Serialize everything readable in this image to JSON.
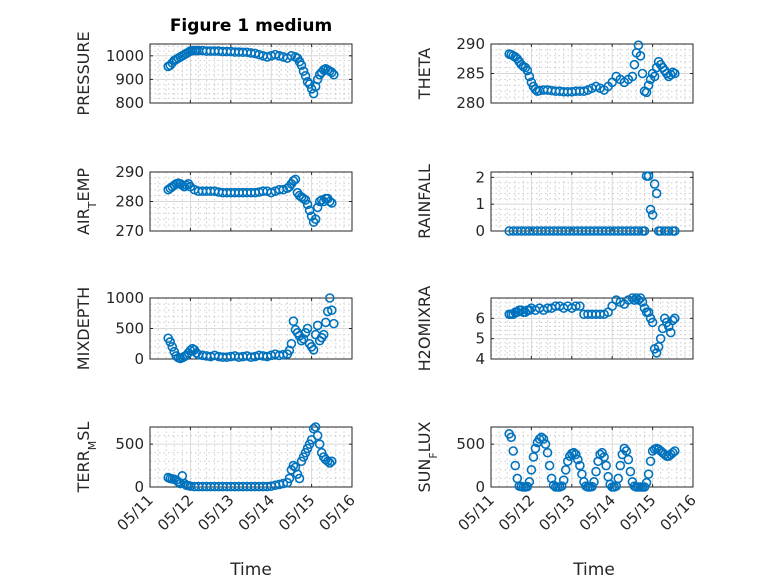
{
  "figure": {
    "title": "Figure 1 medium",
    "xlabel": "Time",
    "marker_color": "#0072bd"
  },
  "chart_data": [
    {
      "type": "scatter",
      "ylabel": "PRESSURE",
      "ylim": [
        800,
        1050
      ],
      "yticks": [
        800,
        900,
        1000
      ],
      "x": [
        11.45,
        11.5,
        11.55,
        11.6,
        11.65,
        11.7,
        11.75,
        11.8,
        11.85,
        11.9,
        11.95,
        12.0,
        12.05,
        12.1,
        12.15,
        12.2,
        12.3,
        12.4,
        12.5,
        12.6,
        12.7,
        12.8,
        12.9,
        13.0,
        13.1,
        13.2,
        13.3,
        13.4,
        13.5,
        13.6,
        13.7,
        13.8,
        13.9,
        14.0,
        14.1,
        14.2,
        14.3,
        14.4,
        14.5,
        14.6,
        14.65,
        14.7,
        14.75,
        14.8,
        14.85,
        14.9,
        14.95,
        15.0,
        15.05,
        15.1,
        15.15,
        15.2,
        15.25,
        15.3,
        15.35,
        15.4,
        15.45,
        15.5,
        15.55
      ],
      "y": [
        955,
        960,
        970,
        980,
        985,
        990,
        995,
        1000,
        1005,
        1010,
        1015,
        1020,
        1022,
        1022,
        1022,
        1022,
        1022,
        1020,
        1020,
        1020,
        1020,
        1018,
        1018,
        1018,
        1016,
        1016,
        1015,
        1015,
        1012,
        1010,
        1005,
        1000,
        995,
        1000,
        1005,
        1000,
        995,
        990,
        1000,
        995,
        990,
        975,
        960,
        935,
        915,
        890,
        880,
        860,
        840,
        870,
        900,
        920,
        930,
        940,
        945,
        940,
        935,
        930,
        920
      ]
    },
    {
      "type": "scatter",
      "ylabel": "THETA",
      "ylim": [
        280,
        290
      ],
      "yticks": [
        280,
        285,
        290
      ],
      "x": [
        11.45,
        11.5,
        11.55,
        11.6,
        11.65,
        11.7,
        11.75,
        11.8,
        11.85,
        11.9,
        11.95,
        12.0,
        12.05,
        12.1,
        12.15,
        12.2,
        12.3,
        12.4,
        12.5,
        12.6,
        12.7,
        12.8,
        12.9,
        13.0,
        13.1,
        13.2,
        13.3,
        13.4,
        13.5,
        13.6,
        13.7,
        13.8,
        13.9,
        14.0,
        14.1,
        14.2,
        14.3,
        14.4,
        14.5,
        14.55,
        14.6,
        14.65,
        14.7,
        14.75,
        14.8,
        14.85,
        14.9,
        14.95,
        15.0,
        15.05,
        15.1,
        15.15,
        15.2,
        15.25,
        15.3,
        15.35,
        15.4,
        15.45,
        15.5,
        15.55
      ],
      "y": [
        288.3,
        288.2,
        288.0,
        287.8,
        287.5,
        287.0,
        286.5,
        286.2,
        286.0,
        285.5,
        284.5,
        283.5,
        282.8,
        282.3,
        282.0,
        282.1,
        282.2,
        282.2,
        282.1,
        282.0,
        282.0,
        281.9,
        281.9,
        281.9,
        282.0,
        282.0,
        282.0,
        282.2,
        282.5,
        282.8,
        282.5,
        282.2,
        282.8,
        283.5,
        284.5,
        284.0,
        283.5,
        284.0,
        284.5,
        286.5,
        288.5,
        289.8,
        288.0,
        285.0,
        282.0,
        281.8,
        283.0,
        284.0,
        285.0,
        284.5,
        286.0,
        287.0,
        286.5,
        286.0,
        285.5,
        285.0,
        284.5,
        284.8,
        285.2,
        285.0
      ]
    },
    {
      "type": "scatter",
      "ylabel": "AIR_TEMP",
      "ylim": [
        270,
        290
      ],
      "yticks": [
        270,
        280,
        290
      ],
      "x": [
        11.45,
        11.5,
        11.55,
        11.6,
        11.65,
        11.7,
        11.75,
        11.8,
        11.85,
        11.9,
        11.95,
        12.0,
        12.1,
        12.2,
        12.3,
        12.4,
        12.5,
        12.6,
        12.7,
        12.8,
        12.9,
        13.0,
        13.1,
        13.2,
        13.3,
        13.4,
        13.5,
        13.6,
        13.7,
        13.8,
        13.9,
        14.0,
        14.1,
        14.2,
        14.3,
        14.4,
        14.45,
        14.5,
        14.55,
        14.6,
        14.65,
        14.7,
        14.75,
        14.8,
        14.85,
        14.9,
        14.95,
        15.0,
        15.05,
        15.1,
        15.15,
        15.2,
        15.25,
        15.3,
        15.35,
        15.4,
        15.45,
        15.5
      ],
      "y": [
        284.0,
        284.5,
        285.0,
        285.5,
        286.0,
        286.2,
        286.0,
        285.5,
        285.0,
        285.5,
        286.0,
        285.0,
        284.0,
        283.5,
        283.5,
        283.5,
        283.5,
        283.5,
        283.2,
        283.0,
        283.0,
        283.0,
        283.0,
        283.0,
        283.0,
        283.0,
        283.0,
        283.0,
        283.2,
        283.5,
        283.5,
        283.0,
        283.5,
        284.0,
        284.0,
        284.5,
        285.0,
        286.0,
        287.0,
        287.5,
        283.0,
        282.0,
        281.5,
        281.0,
        280.5,
        279.0,
        277.0,
        275.0,
        273.0,
        274.0,
        278.0,
        280.0,
        280.5,
        280.0,
        281.0,
        281.0,
        280.0,
        279.5
      ]
    },
    {
      "type": "scatter",
      "ylabel": "RAINFALL",
      "ylim": [
        0,
        2.2
      ],
      "yticks": [
        0,
        1,
        2
      ],
      "x": [
        11.45,
        11.55,
        11.65,
        11.75,
        11.85,
        11.95,
        12.05,
        12.15,
        12.25,
        12.35,
        12.45,
        12.55,
        12.65,
        12.75,
        12.85,
        12.95,
        13.05,
        13.15,
        13.25,
        13.35,
        13.45,
        13.55,
        13.65,
        13.75,
        13.85,
        13.95,
        14.05,
        14.15,
        14.25,
        14.35,
        14.45,
        14.55,
        14.65,
        14.75,
        14.8,
        14.85,
        14.9,
        14.95,
        15.0,
        15.05,
        15.1,
        15.15,
        15.2,
        15.3,
        15.4,
        15.5,
        15.55
      ],
      "y": [
        0,
        0,
        0,
        0,
        0,
        0,
        0,
        0,
        0,
        0,
        0,
        0,
        0,
        0,
        0,
        0,
        0,
        0,
        0,
        0,
        0,
        0,
        0,
        0,
        0,
        0,
        0,
        0,
        0,
        0,
        0,
        0,
        0,
        0,
        0,
        2.05,
        2.05,
        0.8,
        0.6,
        1.75,
        1.4,
        0,
        0,
        0,
        0,
        0,
        0
      ]
    },
    {
      "type": "scatter",
      "ylabel": "MIXDEPTH",
      "ylim": [
        0,
        1000
      ],
      "yticks": [
        0,
        500,
        1000
      ],
      "x": [
        11.45,
        11.5,
        11.55,
        11.6,
        11.65,
        11.7,
        11.75,
        11.8,
        11.85,
        11.9,
        11.95,
        12.0,
        12.05,
        12.1,
        12.15,
        12.2,
        12.3,
        12.4,
        12.5,
        12.6,
        12.7,
        12.8,
        12.9,
        13.0,
        13.1,
        13.2,
        13.3,
        13.4,
        13.5,
        13.6,
        13.7,
        13.8,
        13.9,
        14.0,
        14.1,
        14.2,
        14.3,
        14.4,
        14.45,
        14.5,
        14.55,
        14.6,
        14.65,
        14.7,
        14.75,
        14.8,
        14.85,
        14.9,
        14.95,
        15.0,
        15.05,
        15.1,
        15.15,
        15.2,
        15.25,
        15.3,
        15.35,
        15.4,
        15.45,
        15.5,
        15.55
      ],
      "y": [
        340,
        280,
        200,
        120,
        50,
        20,
        10,
        20,
        40,
        60,
        100,
        140,
        170,
        150,
        100,
        70,
        60,
        50,
        40,
        60,
        40,
        30,
        30,
        40,
        50,
        30,
        40,
        50,
        30,
        40,
        60,
        50,
        40,
        60,
        80,
        60,
        70,
        80,
        140,
        250,
        620,
        480,
        430,
        380,
        300,
        330,
        430,
        500,
        250,
        200,
        150,
        400,
        550,
        300,
        350,
        400,
        600,
        780,
        1000,
        800,
        580
      ]
    },
    {
      "type": "scatter",
      "ylabel": "H2OMIXRA",
      "ylim": [
        4,
        7
      ],
      "yticks": [
        4,
        5,
        6
      ],
      "x": [
        11.45,
        11.5,
        11.55,
        11.6,
        11.65,
        11.7,
        11.75,
        11.8,
        11.85,
        11.9,
        11.95,
        12.0,
        12.1,
        12.2,
        12.3,
        12.4,
        12.5,
        12.6,
        12.7,
        12.8,
        12.9,
        13.0,
        13.1,
        13.2,
        13.3,
        13.4,
        13.5,
        13.6,
        13.7,
        13.8,
        13.9,
        14.0,
        14.1,
        14.2,
        14.3,
        14.4,
        14.5,
        14.55,
        14.6,
        14.65,
        14.7,
        14.75,
        14.8,
        14.85,
        14.9,
        14.95,
        15.0,
        15.05,
        15.1,
        15.15,
        15.2,
        15.25,
        15.3,
        15.35,
        15.4,
        15.45,
        15.5,
        15.55
      ],
      "y": [
        6.2,
        6.2,
        6.2,
        6.3,
        6.3,
        6.4,
        6.4,
        6.3,
        6.3,
        6.4,
        6.4,
        6.5,
        6.4,
        6.5,
        6.4,
        6.5,
        6.5,
        6.6,
        6.6,
        6.5,
        6.6,
        6.5,
        6.6,
        6.6,
        6.2,
        6.2,
        6.2,
        6.2,
        6.2,
        6.2,
        6.3,
        6.6,
        6.9,
        6.8,
        6.7,
        6.9,
        7.0,
        6.9,
        7.0,
        6.9,
        7.0,
        6.8,
        6.5,
        6.3,
        6.3,
        6.0,
        5.8,
        4.5,
        4.3,
        4.6,
        5.0,
        5.5,
        6.0,
        5.8,
        5.6,
        5.3,
        5.9,
        6.0
      ]
    },
    {
      "type": "scatter",
      "ylabel": "TERR_MSL",
      "ylim": [
        0,
        700
      ],
      "yticks": [
        0,
        500
      ],
      "x": [
        11.45,
        11.5,
        11.55,
        11.6,
        11.65,
        11.7,
        11.75,
        11.8,
        11.85,
        11.9,
        11.95,
        12.0,
        12.1,
        12.2,
        12.3,
        12.4,
        12.5,
        12.6,
        12.7,
        12.8,
        12.9,
        13.0,
        13.1,
        13.2,
        13.3,
        13.4,
        13.5,
        13.6,
        13.7,
        13.8,
        13.9,
        14.0,
        14.1,
        14.2,
        14.3,
        14.4,
        14.45,
        14.5,
        14.55,
        14.6,
        14.65,
        14.7,
        14.75,
        14.8,
        14.85,
        14.9,
        14.95,
        15.0,
        15.05,
        15.1,
        15.15,
        15.2,
        15.25,
        15.3,
        15.35,
        15.4,
        15.45,
        15.5
      ],
      "y": [
        110,
        100,
        95,
        90,
        80,
        60,
        40,
        130,
        40,
        20,
        15,
        10,
        5,
        5,
        5,
        5,
        5,
        5,
        5,
        5,
        5,
        5,
        5,
        5,
        5,
        5,
        5,
        5,
        5,
        5,
        5,
        10,
        20,
        30,
        40,
        50,
        100,
        200,
        250,
        230,
        150,
        100,
        300,
        350,
        400,
        450,
        500,
        550,
        680,
        700,
        600,
        500,
        400,
        350,
        320,
        300,
        280,
        300
      ]
    },
    {
      "type": "scatter",
      "ylabel": "SUN_FLUX",
      "ylim": [
        0,
        700
      ],
      "yticks": [
        0,
        500
      ],
      "x": [
        11.45,
        11.5,
        11.55,
        11.6,
        11.65,
        11.7,
        11.75,
        11.8,
        11.85,
        11.9,
        11.95,
        12.0,
        12.05,
        12.1,
        12.15,
        12.2,
        12.25,
        12.3,
        12.35,
        12.4,
        12.45,
        12.5,
        12.55,
        12.6,
        12.65,
        12.7,
        12.75,
        12.8,
        12.85,
        12.9,
        12.95,
        13.0,
        13.05,
        13.1,
        13.15,
        13.2,
        13.25,
        13.3,
        13.35,
        13.4,
        13.45,
        13.5,
        13.55,
        13.6,
        13.65,
        13.7,
        13.75,
        13.8,
        13.85,
        13.9,
        13.95,
        14.0,
        14.05,
        14.1,
        14.15,
        14.2,
        14.25,
        14.3,
        14.35,
        14.4,
        14.45,
        14.5,
        14.55,
        14.6,
        14.65,
        14.7,
        14.75,
        14.8,
        14.85,
        14.9,
        14.95,
        15.0,
        15.05,
        15.1,
        15.15,
        15.2,
        15.25,
        15.3,
        15.35,
        15.4,
        15.45,
        15.5,
        15.55
      ],
      "y": [
        620,
        580,
        420,
        250,
        100,
        10,
        5,
        0,
        0,
        5,
        60,
        200,
        350,
        450,
        520,
        560,
        580,
        560,
        500,
        400,
        250,
        100,
        20,
        0,
        0,
        0,
        10,
        80,
        200,
        300,
        360,
        390,
        400,
        380,
        320,
        250,
        150,
        60,
        10,
        0,
        0,
        5,
        60,
        180,
        300,
        380,
        400,
        350,
        250,
        120,
        30,
        0,
        0,
        10,
        100,
        250,
        380,
        450,
        420,
        320,
        180,
        60,
        10,
        0,
        0,
        0,
        0,
        0,
        50,
        150,
        300,
        420,
        440,
        450,
        440,
        420,
        400,
        380,
        360,
        360,
        380,
        400,
        420
      ]
    }
  ],
  "xaxis": {
    "ticks": [
      11,
      12,
      13,
      14,
      15,
      16
    ],
    "tick_labels": [
      "05/11",
      "05/12",
      "05/13",
      "05/14",
      "05/15",
      "05/16"
    ],
    "xlim": [
      11,
      16
    ]
  }
}
